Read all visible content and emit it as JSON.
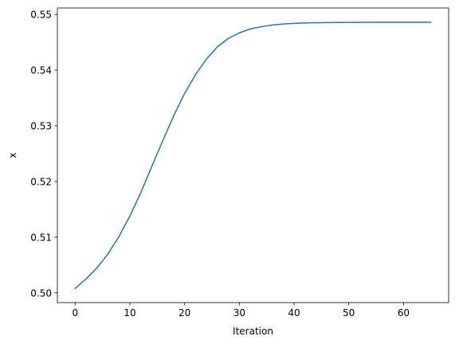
{
  "chart_data": {
    "type": "line",
    "title": "",
    "xlabel": "Iteration",
    "ylabel": "x",
    "xlim": [
      -3.25,
      68.25
    ],
    "ylim": [
      0.49825,
      0.55117
    ],
    "xticks": [
      0,
      10,
      20,
      30,
      40,
      50,
      60
    ],
    "xtick_labels": [
      "0",
      "10",
      "20",
      "30",
      "40",
      "50",
      "60"
    ],
    "yticks": [
      0.5,
      0.51,
      0.52,
      0.53,
      0.54,
      0.55
    ],
    "ytick_labels": [
      "0.50",
      "0.51",
      "0.52",
      "0.53",
      "0.54",
      "0.55"
    ],
    "grid": false,
    "series": [
      {
        "color": "#1f77b4",
        "x": [
          0,
          2,
          4,
          6,
          8,
          10,
          12,
          14,
          16,
          18,
          20,
          22,
          24,
          26,
          28,
          30,
          32,
          34,
          36,
          38,
          40,
          43,
          46,
          50,
          55,
          60,
          65
        ],
        "y": [
          0.5008,
          0.5025,
          0.5045,
          0.507,
          0.5101,
          0.5138,
          0.518,
          0.5227,
          0.5273,
          0.5318,
          0.5358,
          0.5392,
          0.542,
          0.5442,
          0.5457,
          0.5467,
          0.5474,
          0.5478,
          0.5481,
          0.5483,
          0.5484,
          0.5485,
          0.54855,
          0.54858,
          0.5486,
          0.5486,
          0.5486
        ]
      }
    ]
  }
}
